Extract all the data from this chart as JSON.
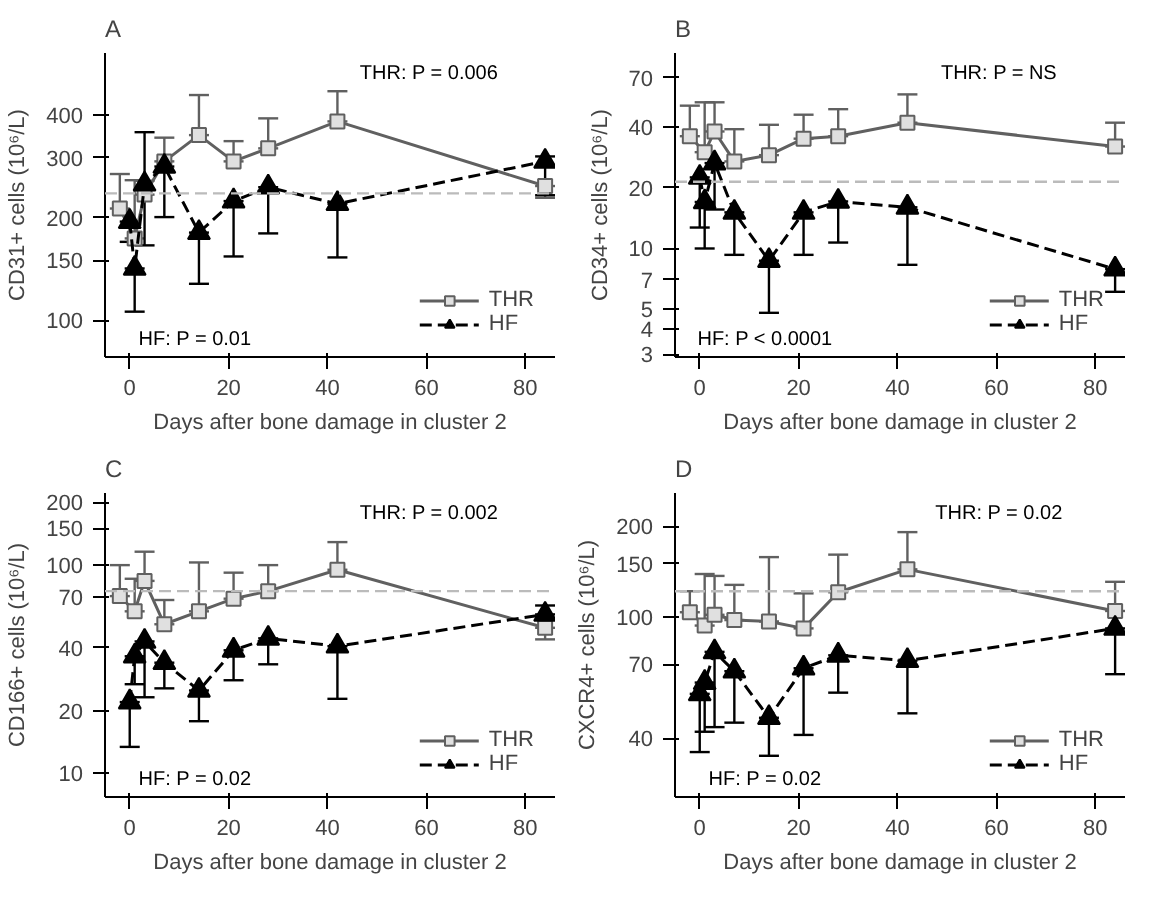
{
  "chart_data": [
    {
      "type": "line",
      "title": "A",
      "xlabel": "Days after bone damage in cluster 2",
      "ylabel": "CD31+ cells (10⁶/L)",
      "log": true,
      "grid": false,
      "legend": "bottom right",
      "xlim": [
        -5,
        86
      ],
      "xticks": [
        0,
        20,
        40,
        60,
        80
      ],
      "ylim": [
        78,
        610
      ],
      "yticks": [
        100,
        150,
        200,
        300,
        400
      ],
      "series": [
        {
          "name": "THR",
          "color": "#606060",
          "marker": "square",
          "line_style": "solid",
          "x": [
            -2,
            1,
            3,
            7,
            14,
            21,
            28,
            42,
            84
          ],
          "values": [
            213,
            174,
            234,
            293,
            350,
            293,
            320,
            384,
            248
          ],
          "errors": [
            [
              213,
              269
            ],
            [
              174,
              258
            ],
            [
              234,
              257
            ],
            [
              293,
              344
            ],
            [
              350,
              459
            ],
            [
              293,
              336
            ],
            [
              320,
              392
            ],
            [
              384,
              471
            ],
            [
              229,
              248
            ]
          ]
        },
        {
          "name": "HF",
          "color": "#000000",
          "marker": "triangle",
          "line_style": "dashed",
          "x": [
            0,
            1,
            3,
            7,
            14,
            21,
            28,
            42,
            84
          ],
          "values": [
            195,
            142,
            251,
            283,
            181,
            224,
            246,
            220,
            293
          ],
          "errors": [
            [
              170,
              195
            ],
            [
              106,
              142
            ],
            [
              166,
              357
            ],
            [
              201,
              283
            ],
            [
              128,
              181
            ],
            [
              154,
              224
            ],
            [
              180,
              246
            ],
            [
              153,
              220
            ],
            [
              233,
              303
            ]
          ]
        }
      ],
      "ref_lines": [
        {
          "axis": "y",
          "value": 236,
          "color": "#bbbbbb",
          "line_style": "dashed"
        }
      ],
      "annotations": [
        "THR: P = 0.006",
        "HF: P = 0.01"
      ]
    },
    {
      "type": "line",
      "title": "B",
      "xlabel": "Days after bone damage in cluster 2",
      "ylabel": "CD34+ cells (10⁶/L)",
      "log": true,
      "grid": false,
      "legend": "bottom right",
      "xlim": [
        -5,
        86
      ],
      "xticks": [
        0,
        20,
        40,
        60,
        80
      ],
      "ylim": [
        2.9,
        93
      ],
      "yticks": [
        3,
        4,
        5,
        7,
        10,
        20,
        40,
        70
      ],
      "series": [
        {
          "name": "THR",
          "color": "#606060",
          "marker": "square",
          "line_style": "solid",
          "x": [
            -2,
            1,
            3,
            7,
            14,
            21,
            28,
            42,
            84
          ],
          "values": [
            36,
            30,
            38,
            27,
            29,
            35,
            36,
            42,
            32
          ],
          "errors": [
            [
              36,
              51
            ],
            [
              30,
              53
            ],
            [
              38,
              53
            ],
            [
              27,
              39
            ],
            [
              29,
              41
            ],
            [
              35,
              46
            ],
            [
              36,
              49
            ],
            [
              42,
              58
            ],
            [
              32,
              42
            ]
          ]
        },
        {
          "name": "HF",
          "color": "#000000",
          "marker": "triangle",
          "line_style": "dashed",
          "x": [
            0,
            1,
            3,
            7,
            14,
            21,
            28,
            42,
            84
          ],
          "values": [
            22.5,
            17,
            26.5,
            15.1,
            8.7,
            15.1,
            17.1,
            16,
            7.9
          ],
          "errors": [
            [
              12.7,
              22.5
            ],
            [
              10,
              17
            ],
            [
              15.6,
              26.5
            ],
            [
              9.3,
              15.1
            ],
            [
              4.8,
              8.7
            ],
            [
              9.3,
              15.1
            ],
            [
              10.7,
              17.1
            ],
            [
              8.3,
              16
            ],
            [
              6.1,
              7.9
            ]
          ]
        }
      ],
      "ref_lines": [
        {
          "axis": "y",
          "value": 21.4,
          "color": "#bbbbbb",
          "line_style": "dashed"
        }
      ],
      "annotations": [
        "THR: P = NS",
        "HF: P < 0.0001"
      ]
    },
    {
      "type": "line",
      "title": "C",
      "xlabel": "Days after bone damage in cluster 2",
      "ylabel": "CD166+ cells (10⁶/L)",
      "log": true,
      "grid": false,
      "legend": "bottom right",
      "xlim": [
        -5,
        86
      ],
      "xticks": [
        0,
        20,
        40,
        60,
        80
      ],
      "ylim": [
        7.7,
        222
      ],
      "yticks": [
        10,
        20,
        40,
        70,
        100,
        150,
        200
      ],
      "series": [
        {
          "name": "THR",
          "color": "#606060",
          "marker": "square",
          "line_style": "solid",
          "x": [
            -2,
            1,
            3,
            7,
            14,
            21,
            28,
            42,
            84
          ],
          "values": [
            71,
            60,
            84,
            52,
            60,
            69,
            75,
            95,
            50
          ],
          "errors": [
            [
              71,
              100
            ],
            [
              60,
              86
            ],
            [
              84,
              116
            ],
            [
              52,
              68
            ],
            [
              60,
              103
            ],
            [
              69,
              92
            ],
            [
              75,
              100
            ],
            [
              95,
              129
            ],
            [
              44,
              50
            ]
          ]
        },
        {
          "name": "HF",
          "color": "#000000",
          "marker": "triangle",
          "line_style": "dashed",
          "x": [
            0,
            1,
            3,
            7,
            14,
            21,
            28,
            42,
            84
          ],
          "values": [
            22,
            36.5,
            43,
            34,
            25,
            39,
            44.5,
            40.8,
            58
          ],
          "errors": [
            [
              13.4,
              22
            ],
            [
              26.8,
              36.5
            ],
            [
              23.2,
              43
            ],
            [
              25.6,
              34
            ],
            [
              17.8,
              25
            ],
            [
              28,
              39
            ],
            [
              33.4,
              44.5
            ],
            [
              22.8,
              40.8
            ],
            [
              58,
              64
            ]
          ]
        }
      ],
      "ref_lines": [
        {
          "axis": "y",
          "value": 75,
          "color": "#bbbbbb",
          "line_style": "dashed"
        }
      ],
      "annotations": [
        "THR: P = 0.002",
        "HF: P = 0.02"
      ]
    },
    {
      "type": "line",
      "title": "D",
      "xlabel": "Days after bone damage in cluster 2",
      "ylabel": "CXCR4+ cells (10⁶/L)",
      "log": true,
      "grid": false,
      "legend": "bottom right",
      "xlim": [
        -5,
        86
      ],
      "xticks": [
        0,
        20,
        40,
        60,
        80
      ],
      "ylim": [
        25.6,
        257
      ],
      "yticks": [
        40,
        70,
        100,
        150,
        200
      ],
      "series": [
        {
          "name": "THR",
          "color": "#606060",
          "marker": "square",
          "line_style": "solid",
          "x": [
            -2,
            1,
            3,
            7,
            14,
            21,
            28,
            42,
            84
          ],
          "values": [
            104,
            94,
            102,
            98,
            97,
            92,
            121,
            144,
            105
          ],
          "errors": [
            [
              104,
              122
            ],
            [
              94,
              139
            ],
            [
              102,
              137
            ],
            [
              98,
              128
            ],
            [
              97,
              158
            ],
            [
              92,
              120
            ],
            [
              121,
              161
            ],
            [
              144,
              191
            ],
            [
              105,
              131
            ]
          ]
        },
        {
          "name": "HF",
          "color": "#000000",
          "marker": "triangle",
          "line_style": "dashed",
          "x": [
            0,
            1,
            3,
            7,
            14,
            21,
            28,
            42,
            84
          ],
          "values": [
            56,
            61,
            77,
            66.5,
            46.7,
            68,
            75,
            72,
            92
          ],
          "errors": [
            [
              36,
              56
            ],
            [
              42,
              61
            ],
            [
              43.5,
              77
            ],
            [
              45,
              66.5
            ],
            [
              35,
              46.7
            ],
            [
              41,
              68
            ],
            [
              56.5,
              75
            ],
            [
              48.3,
              72
            ],
            [
              65,
              92
            ]
          ]
        }
      ],
      "ref_lines": [
        {
          "axis": "y",
          "value": 122,
          "color": "#bbbbbb",
          "line_style": "dashed"
        }
      ],
      "annotations": [
        "THR: P = 0.02",
        "HF: P = 0.02"
      ]
    }
  ]
}
